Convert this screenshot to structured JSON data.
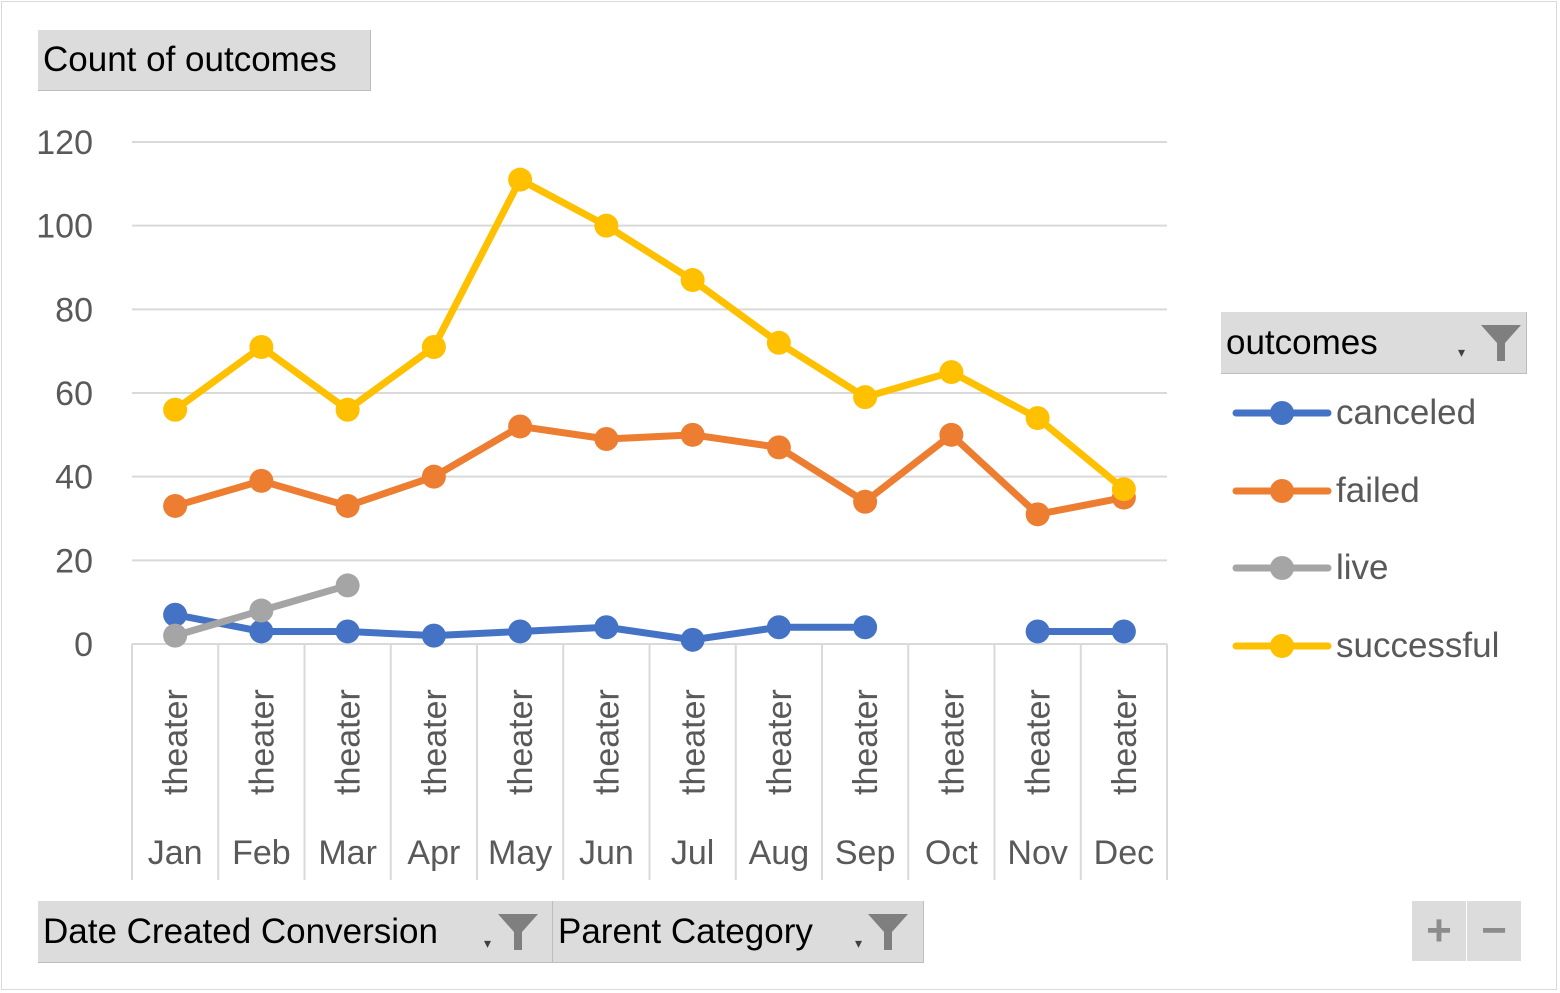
{
  "chart_data": {
    "type": "line",
    "title": "Count of outcomes",
    "outer_categories": [
      "Jan",
      "Feb",
      "Mar",
      "Apr",
      "May",
      "Jun",
      "Jul",
      "Aug",
      "Sep",
      "Oct",
      "Nov",
      "Dec"
    ],
    "inner_categories": [
      "theater",
      "theater",
      "theater",
      "theater",
      "theater",
      "theater",
      "theater",
      "theater",
      "theater",
      "theater",
      "theater",
      "theater"
    ],
    "ylim": [
      0,
      120
    ],
    "yticks": [
      0,
      20,
      40,
      60,
      80,
      100,
      120
    ],
    "grid": true,
    "legend_title": "outcomes",
    "legend_position": "right",
    "series": [
      {
        "name": "canceled",
        "color": "#4472C4",
        "values": [
          7,
          3,
          3,
          2,
          3,
          4,
          1,
          4,
          4,
          null,
          3,
          3
        ]
      },
      {
        "name": "failed",
        "color": "#ED7D31",
        "values": [
          33,
          39,
          33,
          40,
          52,
          49,
          50,
          47,
          34,
          50,
          31,
          35
        ]
      },
      {
        "name": "live",
        "color": "#A5A5A5",
        "values": [
          2,
          8,
          14,
          null,
          null,
          null,
          null,
          null,
          null,
          null,
          null,
          null
        ]
      },
      {
        "name": "successful",
        "color": "#FFC000",
        "values": [
          56,
          71,
          56,
          71,
          111,
          100,
          87,
          72,
          59,
          65,
          54,
          37
        ]
      }
    ]
  },
  "filters": {
    "date_label": "Date Created Conversion",
    "parent_label": "Parent Category"
  },
  "zoom": {
    "plus": "+",
    "minus": "−"
  }
}
